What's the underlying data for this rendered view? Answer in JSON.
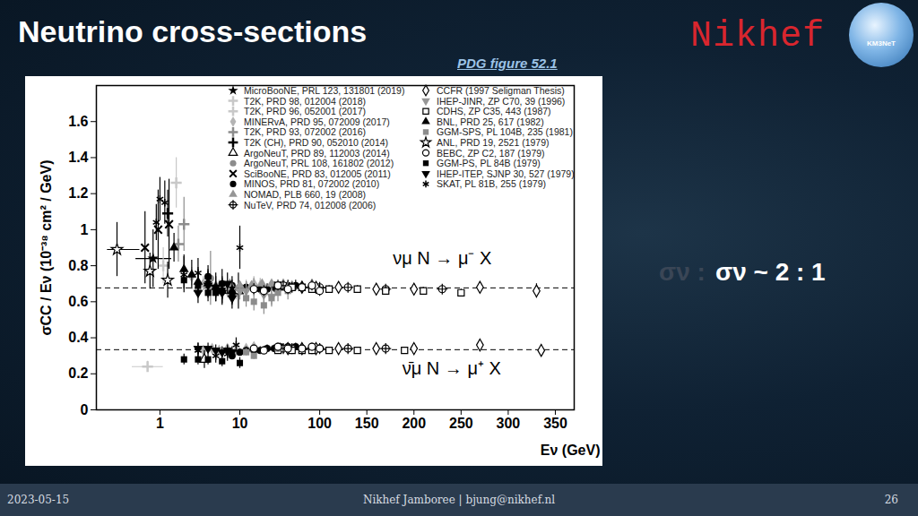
{
  "header": {
    "title": "Neutrino cross-sections",
    "subtitle": "PDG figure 52.1",
    "logo": "Nikhef",
    "badge": "KM3NeT",
    "side_text_dim": "σν :",
    "side_text": "σν ~ 2 : 1"
  },
  "footer": {
    "date": "2023-05-15",
    "center": "Nikhef Jamboree | bjung@nikhef.nl",
    "page": "26"
  },
  "chart_data": {
    "type": "scatter",
    "x_label": "Eν (GeV)",
    "y_label": "σCC / Eν (10⁻³⁸ cm² / GeV)",
    "log": "x",
    "xlim": [
      0.16,
      370
    ],
    "xticks": [
      1,
      10,
      100,
      150,
      200,
      250,
      300,
      350
    ],
    "ylim": [
      0,
      1.8
    ],
    "yticks": [
      0,
      0.2,
      0.4,
      0.6,
      0.8,
      1,
      1.2,
      1.4,
      1.6
    ],
    "dashed_lines": [
      0.677,
      0.334
    ],
    "annotations": [
      {
        "text": "νμ N → μ⁻ X",
        "x": 230,
        "y": 0.84
      },
      {
        "text": "ν̄μ N → μ⁺ X",
        "x": 240,
        "y": 0.23
      }
    ],
    "series": [
      {
        "name": "MicroBooNE, PRL 123, 131801 (2019)",
        "color": "#000000",
        "marker": "star",
        "x": [
          0.82
        ],
        "values": [
          0.84
        ],
        "errors": [
          0.16
        ],
        "x_ranges": [
          [
            0.5,
            1.4
          ]
        ]
      },
      {
        "name": "T2K, PRD 98, 012004 (2018)",
        "color": "#c8c8c8",
        "marker": "plus",
        "x": [
          1.6,
          0.7
        ],
        "values": [
          1.26,
          0.24
        ],
        "errors": [
          0.14,
          0.03
        ],
        "x_ranges": [
          null,
          [
            0.45,
            1.1
          ]
        ]
      },
      {
        "name": "T2K, PRD 96, 052001 (2017)",
        "color": "#c8c8c8",
        "marker": "plus",
        "x": [
          1.1
        ],
        "values": [
          0.8
        ],
        "errors": [
          0.1
        ]
      },
      {
        "name": "MINERvA, PRD 95, 072009 (2017)",
        "color": "#b4b4b4",
        "marker": "diamond",
        "x": [
          2.5,
          3.5,
          4.5,
          5.5,
          7,
          9,
          12,
          15,
          18,
          3.5,
          4.5,
          5.5,
          7,
          9,
          12,
          15
        ],
        "values": [
          0.74,
          0.7,
          0.67,
          0.68,
          0.66,
          0.65,
          0.68,
          0.7,
          0.69,
          0.33,
          0.34,
          0.33,
          0.34,
          0.33,
          0.34,
          0.35
        ],
        "errors": [
          0.05,
          0.04,
          0.04,
          0.04,
          0.04,
          0.04,
          0.04,
          0.04,
          0.04,
          0.02,
          0.02,
          0.02,
          0.02,
          0.02,
          0.02,
          0.02
        ]
      },
      {
        "name": "T2K, PRD 93, 072002 (2016)",
        "color": "#8c8c8c",
        "marker": "plus",
        "x": [
          2.0,
          1.7
        ],
        "values": [
          1.03,
          0.92
        ],
        "errors": [
          0.15,
          0.1
        ]
      },
      {
        "name": "T2K (CH), PRD 90, 052010 (2014)",
        "color": "#000000",
        "marker": "plus",
        "x": [
          1.25
        ],
        "values": [
          1.09
        ],
        "errors": [
          0.13
        ]
      },
      {
        "name": "ArgoNeuT, PRD 89, 112003 (2014)",
        "color": "#000000",
        "marker": "triangle-open",
        "x": [
          9.6,
          3.6
        ],
        "values": [
          0.66,
          0.28
        ],
        "errors": [
          0.1,
          0.05
        ]
      },
      {
        "name": "ArgoNeuT, PRL 108, 161802 (2012)",
        "color": "#8c8c8c",
        "marker": "circle",
        "x": [
          4.3
        ],
        "values": [
          0.73
        ],
        "errors": [
          0.15
        ]
      },
      {
        "name": "SciBooNE, PRD 83, 012005 (2011)",
        "color": "#000000",
        "marker": "times",
        "x": [
          0.65,
          0.95,
          1.3
        ],
        "values": [
          0.9,
          1.0,
          1.03
        ],
        "errors": [
          0.2,
          0.22,
          0.25
        ]
      },
      {
        "name": "MINOS, PRD 81, 072002 (2010)",
        "color": "#000000",
        "marker": "circle",
        "x": [
          4,
          6,
          8,
          10,
          12,
          15,
          18,
          22,
          27,
          32,
          40,
          50,
          8,
          10,
          12,
          15,
          18,
          22,
          27,
          32,
          40,
          50
        ],
        "values": [
          0.74,
          0.7,
          0.69,
          0.68,
          0.68,
          0.67,
          0.67,
          0.67,
          0.68,
          0.68,
          0.69,
          0.69,
          0.3,
          0.32,
          0.33,
          0.33,
          0.33,
          0.34,
          0.34,
          0.35,
          0.35,
          0.35
        ],
        "errors": [
          0.03,
          0.03,
          0.03,
          0.03,
          0.03,
          0.03,
          0.03,
          0.03,
          0.03,
          0.03,
          0.03,
          0.03,
          0.02,
          0.02,
          0.02,
          0.02,
          0.02,
          0.02,
          0.02,
          0.02,
          0.02,
          0.02
        ]
      },
      {
        "name": "NOMAD, PLB 660, 19 (2008)",
        "color": "#969696",
        "marker": "triangle",
        "x": [
          3,
          5,
          7.5,
          10,
          14,
          19,
          25,
          35,
          45,
          60,
          80
        ],
        "values": [
          0.67,
          0.69,
          0.7,
          0.69,
          0.69,
          0.7,
          0.7,
          0.7,
          0.69,
          0.69,
          0.7
        ],
        "errors": [
          0.02,
          0.02,
          0.02,
          0.02,
          0.02,
          0.02,
          0.02,
          0.02,
          0.02,
          0.02,
          0.02
        ]
      },
      {
        "name": "NuTeV, PRD 74, 012008 (2006)",
        "color": "#000000",
        "marker": "circle-plus",
        "x": [
          35,
          45,
          60,
          80,
          100,
          130,
          170,
          230,
          35,
          45,
          60,
          80,
          100,
          130,
          170
        ],
        "values": [
          0.69,
          0.68,
          0.68,
          0.68,
          0.68,
          0.68,
          0.67,
          0.67,
          0.34,
          0.34,
          0.34,
          0.34,
          0.34,
          0.34,
          0.34
        ],
        "errors": [
          0.01,
          0.01,
          0.01,
          0.01,
          0.01,
          0.01,
          0.01,
          0.01,
          0.01,
          0.01,
          0.01,
          0.01,
          0.01,
          0.01,
          0.01
        ]
      },
      {
        "name": "CCFR (1997 Seligman Thesis)",
        "color": "#000000",
        "marker": "diamond-open",
        "x": [
          40,
          60,
          90,
          120,
          160,
          200,
          270,
          330,
          40,
          60,
          90,
          120,
          160,
          200,
          270,
          335
        ],
        "values": [
          0.68,
          0.68,
          0.68,
          0.68,
          0.67,
          0.67,
          0.68,
          0.66,
          0.34,
          0.34,
          0.34,
          0.34,
          0.34,
          0.34,
          0.36,
          0.33
        ],
        "errors": [
          0.02,
          0.02,
          0.02,
          0.02,
          0.02,
          0.02,
          0.03,
          0.04,
          0.01,
          0.01,
          0.01,
          0.01,
          0.01,
          0.01,
          0.02,
          0.03
        ]
      },
      {
        "name": "IHEP-JINR, ZP C70, 39 (1996)",
        "color": "#969696",
        "marker": "triangle-down",
        "x": [
          6,
          8,
          10,
          12,
          15,
          20,
          25
        ],
        "values": [
          0.66,
          0.65,
          0.66,
          0.66,
          0.68,
          0.64,
          0.63
        ],
        "errors": [
          0.05,
          0.05,
          0.05,
          0.05,
          0.05,
          0.05,
          0.05
        ]
      },
      {
        "name": "CDHS, ZP C35, 443 (1987)",
        "color": "#000000",
        "marker": "square-open",
        "x": [
          30,
          45,
          60,
          80,
          110,
          140,
          170,
          210,
          250,
          30,
          45,
          60,
          80,
          110,
          140,
          190
        ],
        "values": [
          0.69,
          0.68,
          0.68,
          0.67,
          0.67,
          0.67,
          0.66,
          0.66,
          0.65,
          0.33,
          0.33,
          0.33,
          0.33,
          0.33,
          0.33,
          0.33
        ],
        "errors": [
          0.02,
          0.02,
          0.02,
          0.02,
          0.02,
          0.02,
          0.02,
          0.02,
          0.02,
          0.01,
          0.01,
          0.01,
          0.01,
          0.01,
          0.01,
          0.01
        ]
      },
      {
        "name": "BNL, PRD 25, 617 (1982)",
        "color": "#000000",
        "marker": "triangle",
        "x": [
          1.5,
          2,
          2.5,
          3,
          4,
          5,
          6,
          8
        ],
        "values": [
          0.9,
          0.78,
          0.75,
          0.71,
          0.7,
          0.68,
          0.66,
          0.66
        ],
        "errors": [
          0.08,
          0.08,
          0.08,
          0.08,
          0.08,
          0.08,
          0.08,
          0.08
        ]
      },
      {
        "name": "GGM-SPS, PL 104B, 235 (1981)",
        "color": "#8c8c8c",
        "marker": "square",
        "x": [
          12,
          15,
          20,
          25,
          30,
          40,
          12,
          15,
          20,
          30,
          40
        ],
        "values": [
          0.62,
          0.6,
          0.58,
          0.62,
          0.65,
          0.66,
          0.32,
          0.3,
          0.33,
          0.34,
          0.34
        ],
        "errors": [
          0.05,
          0.05,
          0.05,
          0.05,
          0.05,
          0.05,
          0.02,
          0.02,
          0.02,
          0.02,
          0.02
        ]
      },
      {
        "name": "ANL, PRD 19, 2521 (1979)",
        "color": "#000000",
        "marker": "star-open",
        "x": [
          0.29,
          0.75,
          1.25
        ],
        "values": [
          0.89,
          0.77,
          0.72
        ],
        "errors": [
          0.15,
          0.1,
          0.1
        ],
        "x_ranges": [
          [
            0.22,
            0.56
          ],
          null,
          null
        ]
      },
      {
        "name": "BEBC, ZP C2, 187 (1979)",
        "color": "#000000",
        "marker": "circle-open",
        "x": [
          15,
          20,
          30,
          40,
          60,
          80,
          100,
          15,
          20,
          30,
          40,
          60,
          80,
          100
        ],
        "values": [
          0.67,
          0.66,
          0.69,
          0.67,
          0.68,
          0.69,
          0.66,
          0.34,
          0.33,
          0.35,
          0.34,
          0.34,
          0.35,
          0.34
        ],
        "errors": [
          0.03,
          0.03,
          0.03,
          0.03,
          0.03,
          0.03,
          0.03,
          0.02,
          0.02,
          0.02,
          0.02,
          0.02,
          0.02,
          0.02
        ]
      },
      {
        "name": "GGM-PS, PL 84B (1979)",
        "color": "#000000",
        "marker": "square",
        "x": [
          2,
          3,
          4,
          5,
          6,
          8,
          2,
          3,
          4,
          6,
          10
        ],
        "values": [
          0.72,
          0.69,
          0.65,
          0.65,
          0.66,
          0.64,
          0.28,
          0.28,
          0.28,
          0.27,
          0.26
        ],
        "errors": [
          0.05,
          0.05,
          0.05,
          0.05,
          0.05,
          0.05,
          0.03,
          0.03,
          0.03,
          0.03,
          0.03
        ]
      },
      {
        "name": "IHEP-ITEP, SJNP 30, 527 (1979)",
        "color": "#000000",
        "marker": "triangle-down",
        "x": [
          3,
          4,
          5,
          6,
          7,
          8,
          3,
          4,
          5,
          6,
          7,
          8
        ],
        "values": [
          0.65,
          0.69,
          0.68,
          0.65,
          0.7,
          0.62,
          0.34,
          0.34,
          0.33,
          0.32,
          0.33,
          0.32
        ],
        "errors": [
          0.06,
          0.06,
          0.06,
          0.06,
          0.06,
          0.06,
          0.03,
          0.03,
          0.03,
          0.03,
          0.03,
          0.03
        ]
      },
      {
        "name": "SKAT, PL 81B, 255 (1979)",
        "color": "#000000",
        "marker": "asterisk",
        "x": [
          0.9,
          1.0,
          1.15,
          2,
          3,
          4,
          6,
          10,
          3,
          5,
          7,
          9
        ],
        "values": [
          1.04,
          1.17,
          1.15,
          0.75,
          0.76,
          0.72,
          0.7,
          0.9,
          0.33,
          0.3,
          0.31,
          0.36
        ],
        "errors": [
          0.1,
          0.12,
          0.12,
          0.1,
          0.08,
          0.08,
          0.08,
          0.12,
          0.04,
          0.04,
          0.04,
          0.04
        ]
      }
    ]
  }
}
